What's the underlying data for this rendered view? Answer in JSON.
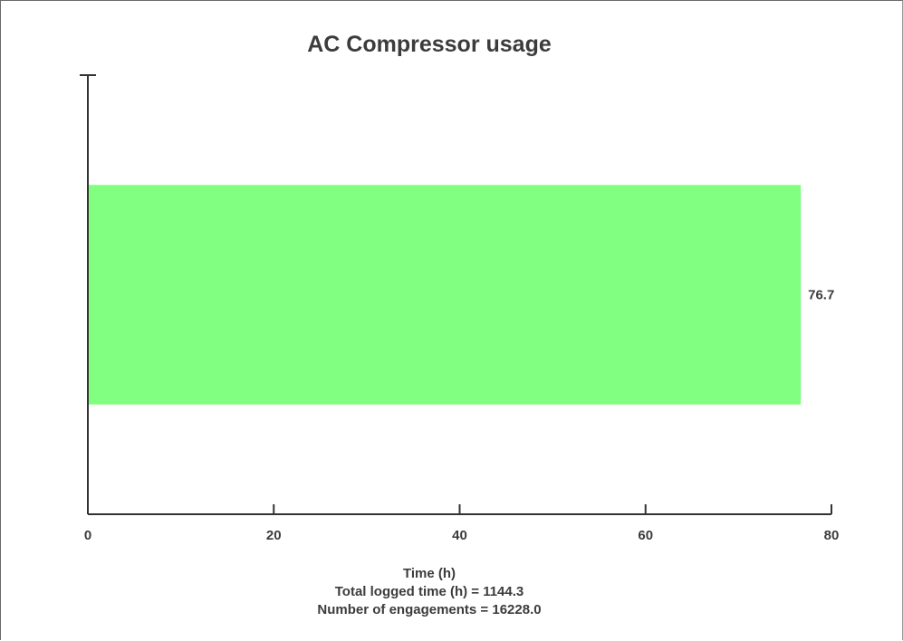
{
  "chart_data": {
    "type": "bar",
    "orientation": "horizontal",
    "title": "AC Compressor usage",
    "xlabel": "Time (h)",
    "xlim": [
      0,
      80
    ],
    "x_ticks": [
      0,
      20,
      40,
      60,
      80
    ],
    "categories": [
      ""
    ],
    "values": [
      76.7
    ],
    "value_labels": [
      "76.7"
    ],
    "notes": [
      "Total logged time (h) = 1144.3",
      "Number of engagements = 16228.0"
    ],
    "grid": false,
    "legend": "none",
    "colors": {
      "bar": "#80ff80",
      "axis": "#333333",
      "text": "#3c3c3c",
      "background": "#ffffff"
    }
  }
}
